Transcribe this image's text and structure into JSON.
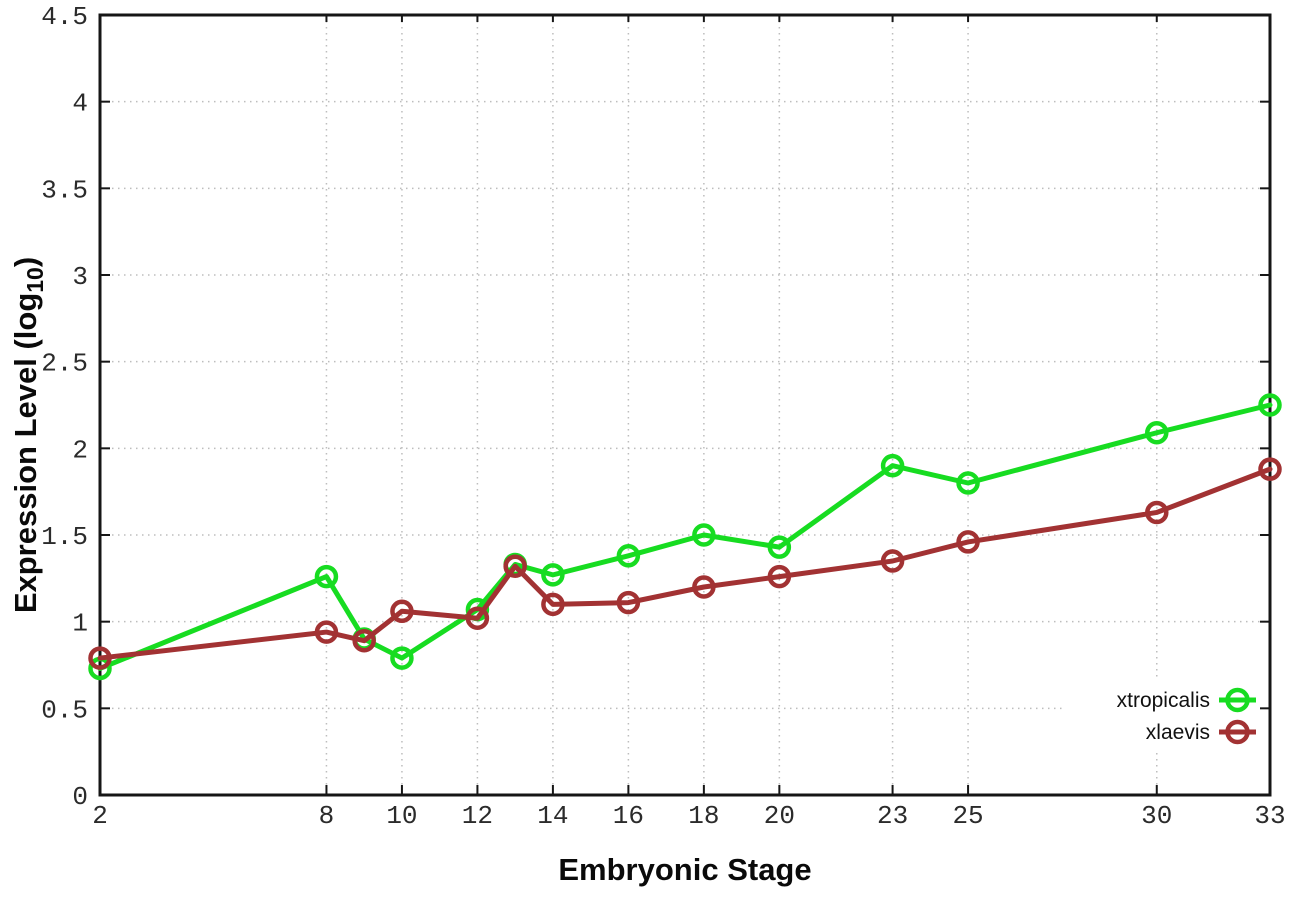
{
  "chart_data": {
    "type": "line",
    "title": "",
    "xlabel": "Embryonic Stage",
    "ylabel": "Expression Level (log10)",
    "ylabel_parts": {
      "prefix": "Expression Level (log",
      "subscript": "10",
      "suffix": ")"
    },
    "xlim": [
      2,
      33
    ],
    "ylim": [
      0,
      4.5
    ],
    "x_ticks": [
      2,
      8,
      10,
      12,
      14,
      16,
      18,
      20,
      23,
      25,
      30,
      33
    ],
    "x_tick_labels": [
      "2",
      "8",
      "10",
      "12",
      "14",
      "16",
      "18",
      "20",
      "23",
      "25",
      "30",
      "33"
    ],
    "y_ticks": [
      0,
      0.5,
      1,
      1.5,
      2,
      2.5,
      3,
      3.5,
      4,
      4.5
    ],
    "y_tick_labels": [
      "0",
      "0.5",
      "1",
      "1.5",
      "2",
      "2.5",
      "3",
      "3.5",
      "4",
      "4.5"
    ],
    "grid": true,
    "legend_position": "bottom-right",
    "x": [
      2,
      8,
      9,
      10,
      12,
      13,
      14,
      16,
      18,
      20,
      23,
      25,
      30,
      33
    ],
    "series": [
      {
        "name": "xtropicalis",
        "color": "#17dc21",
        "marker": "open-circle",
        "values": [
          0.73,
          1.26,
          0.9,
          0.79,
          1.07,
          1.33,
          1.27,
          1.38,
          1.5,
          1.43,
          1.9,
          1.8,
          2.09,
          2.25
        ]
      },
      {
        "name": "xlaevis",
        "color": "#a23233",
        "marker": "open-circle",
        "values": [
          0.79,
          0.94,
          0.89,
          1.06,
          1.02,
          1.32,
          1.1,
          1.11,
          1.2,
          1.26,
          1.35,
          1.46,
          1.63,
          1.88
        ]
      }
    ],
    "colors": {
      "border": "#161616",
      "grid": "#bdbdbd",
      "tick_label": "#2b2b2b",
      "background": "#ffffff"
    }
  }
}
